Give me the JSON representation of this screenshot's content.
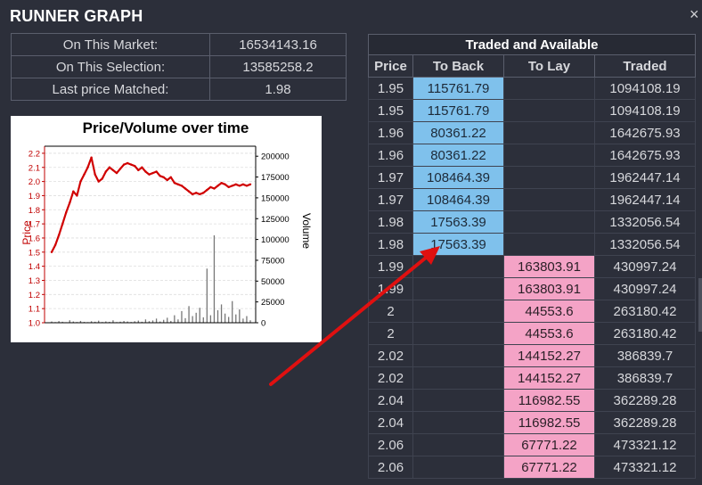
{
  "window": {
    "title": "RUNNER GRAPH",
    "close_glyph": "×"
  },
  "summary": [
    {
      "label": "On This Market:",
      "value": "16534143.16"
    },
    {
      "label": "On This Selection:",
      "value": "13585258.2"
    },
    {
      "label": "Last price Matched:",
      "value": "1.98"
    }
  ],
  "ladder": {
    "title": "Traded and Available",
    "columns": [
      "Price",
      "To Back",
      "To Lay",
      "Traded"
    ],
    "rows": [
      {
        "price": "1.95",
        "back": "115761.79",
        "lay": "",
        "traded": "1094108.19"
      },
      {
        "price": "1.95",
        "back": "115761.79",
        "lay": "",
        "traded": "1094108.19"
      },
      {
        "price": "1.96",
        "back": "80361.22",
        "lay": "",
        "traded": "1642675.93"
      },
      {
        "price": "1.96",
        "back": "80361.22",
        "lay": "",
        "traded": "1642675.93"
      },
      {
        "price": "1.97",
        "back": "108464.39",
        "lay": "",
        "traded": "1962447.14"
      },
      {
        "price": "1.97",
        "back": "108464.39",
        "lay": "",
        "traded": "1962447.14"
      },
      {
        "price": "1.98",
        "back": "17563.39",
        "lay": "",
        "traded": "1332056.54"
      },
      {
        "price": "1.98",
        "back": "17563.39",
        "lay": "",
        "traded": "1332056.54"
      },
      {
        "price": "1.99",
        "back": "",
        "lay": "163803.91",
        "traded": "430997.24"
      },
      {
        "price": "1.99",
        "back": "",
        "lay": "163803.91",
        "traded": "430997.24"
      },
      {
        "price": "2",
        "back": "",
        "lay": "44553.6",
        "traded": "263180.42"
      },
      {
        "price": "2",
        "back": "",
        "lay": "44553.6",
        "traded": "263180.42"
      },
      {
        "price": "2.02",
        "back": "",
        "lay": "144152.27",
        "traded": "386839.7"
      },
      {
        "price": "2.02",
        "back": "",
        "lay": "144152.27",
        "traded": "386839.7"
      },
      {
        "price": "2.04",
        "back": "",
        "lay": "116982.55",
        "traded": "362289.28"
      },
      {
        "price": "2.04",
        "back": "",
        "lay": "116982.55",
        "traded": "362289.28"
      },
      {
        "price": "2.06",
        "back": "",
        "lay": "67771.22",
        "traded": "473321.12"
      },
      {
        "price": "2.06",
        "back": "",
        "lay": "67771.22",
        "traded": "473321.12"
      }
    ],
    "colors": {
      "back": "#7fc1ec",
      "lay": "#f4a3c6"
    }
  },
  "chart_data": {
    "type": "line",
    "title": "Price/Volume over time",
    "ylabel": "Price",
    "y2label": "Volume",
    "ylim": [
      1.0,
      2.25
    ],
    "y2lim": [
      0,
      212000
    ],
    "yticks": [
      "1.0",
      "1.1",
      "1.2",
      "1.3",
      "1.4",
      "1.5",
      "1.6",
      "1.7",
      "1.8",
      "1.9",
      "2.0",
      "2.1",
      "2.2"
    ],
    "y2ticks": [
      "0",
      "25000",
      "50000",
      "75000",
      "100000",
      "125000",
      "150000",
      "175000",
      "200000"
    ],
    "grid": true,
    "series": [
      {
        "axis": "left",
        "color": "#d00000",
        "values": [
          1.5,
          1.55,
          1.62,
          1.7,
          1.78,
          1.85,
          1.93,
          1.9,
          2.0,
          2.05,
          2.1,
          2.17,
          2.05,
          2.0,
          2.02,
          2.07,
          2.1,
          2.08,
          2.06,
          2.09,
          2.12,
          2.13,
          2.12,
          2.11,
          2.08,
          2.1,
          2.07,
          2.05,
          2.06,
          2.07,
          2.04,
          2.03,
          2.01,
          2.03,
          1.99,
          1.98,
          1.97,
          1.95,
          1.93,
          1.91,
          1.92,
          1.91,
          1.92,
          1.94,
          1.96,
          1.95,
          1.97,
          1.99,
          1.98,
          1.96,
          1.97,
          1.98,
          1.97,
          1.98,
          1.97,
          1.98
        ]
      },
      {
        "axis": "right",
        "color": "#777777",
        "values": [
          1500,
          800,
          2000,
          1200,
          600,
          3000,
          1500,
          900,
          2200,
          1000,
          700,
          1800,
          1200,
          2500,
          900,
          1600,
          1100,
          3000,
          800,
          1300,
          2100,
          1500,
          900,
          1800,
          2600,
          1200,
          4000,
          1900,
          2800,
          5000,
          1500,
          3500,
          6000,
          2200,
          9000,
          4000,
          14000,
          5500,
          20000,
          8000,
          12000,
          18000,
          6500,
          65000,
          9000,
          105000,
          15000,
          22000,
          11000,
          7000,
          26000,
          10000,
          16000,
          5000,
          8000,
          3000
        ]
      }
    ]
  }
}
